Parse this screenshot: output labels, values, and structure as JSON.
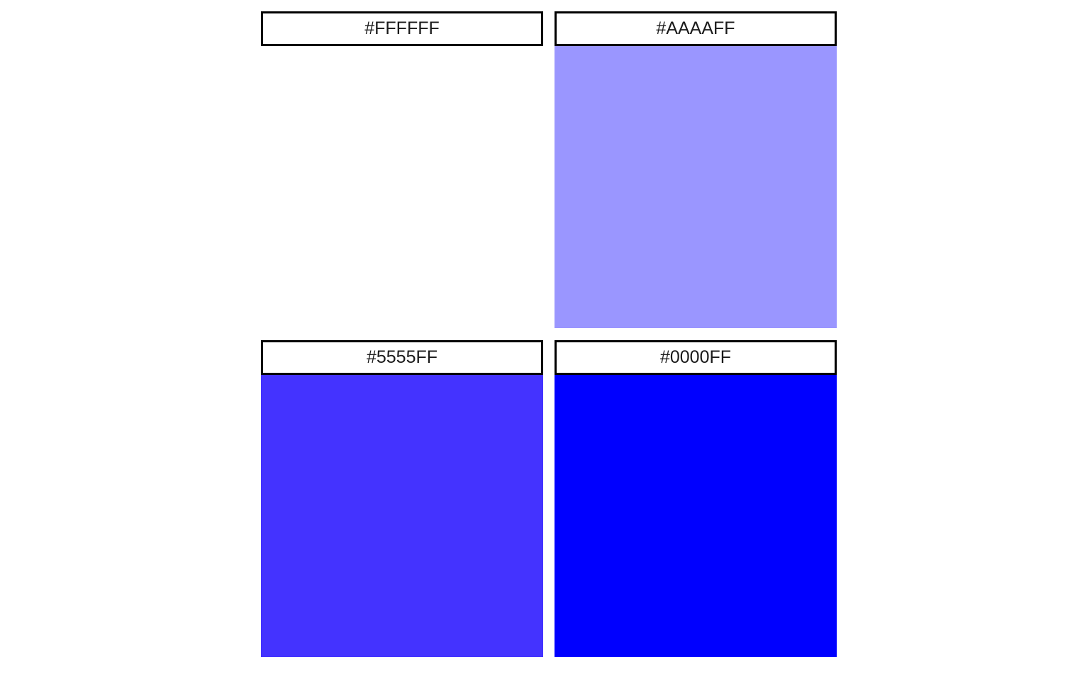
{
  "panels": [
    {
      "label": "#FFFFFF",
      "color": "#FFFFFF"
    },
    {
      "label": "#AAAAFF",
      "color": "#9A96FF"
    },
    {
      "label": "#5555FF",
      "color": "#4433FF"
    },
    {
      "label": "#0000FF",
      "color": "#0000FF"
    }
  ]
}
